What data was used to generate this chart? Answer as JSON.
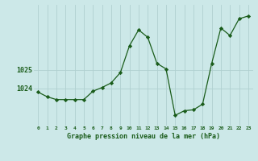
{
  "x": [
    0,
    1,
    2,
    3,
    4,
    5,
    6,
    7,
    8,
    9,
    10,
    11,
    12,
    13,
    14,
    15,
    16,
    17,
    18,
    19,
    20,
    21,
    22,
    23
  ],
  "y": [
    1023.8,
    1023.55,
    1023.4,
    1023.4,
    1023.4,
    1023.4,
    1023.85,
    1024.05,
    1024.3,
    1024.85,
    1026.3,
    1027.15,
    1026.75,
    1025.35,
    1025.05,
    1022.55,
    1022.8,
    1022.85,
    1023.15,
    1025.35,
    1027.25,
    1026.85,
    1027.75,
    1027.9
  ],
  "line_color": "#1a5c1a",
  "marker": "D",
  "marker_size": 2.2,
  "bg_color": "#cce8e8",
  "grid_color": "#b0d0d0",
  "xlabel": "Graphe pression niveau de la mer (hPa)",
  "xlabel_color": "#1a5c1a",
  "tick_color": "#1a5c1a",
  "ytick_labels": [
    "1024",
    "1025"
  ],
  "ylim": [
    1022.0,
    1028.5
  ],
  "xlim": [
    -0.5,
    23.5
  ],
  "x_ticks": [
    0,
    1,
    2,
    3,
    4,
    5,
    6,
    7,
    8,
    9,
    10,
    11,
    12,
    13,
    14,
    15,
    16,
    17,
    18,
    19,
    20,
    21,
    22,
    23
  ],
  "yticks": [
    1024,
    1025
  ]
}
